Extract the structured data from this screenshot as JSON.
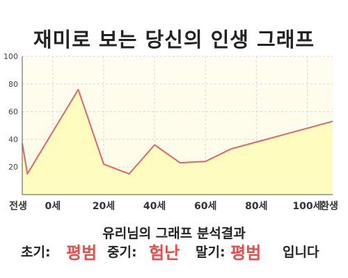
{
  "chart_data": {
    "type": "area",
    "title": "재미로 보는 당신의 인생 그래프",
    "x": [
      -2,
      0,
      20,
      30,
      40,
      50,
      60,
      70,
      80,
      90,
      100,
      120
    ],
    "y": [
      37,
      15,
      76,
      22,
      15,
      36,
      23,
      24,
      33,
      38,
      43,
      53
    ],
    "x_tick_labels": [
      "전생",
      "0세",
      "20세",
      "40세",
      "60세",
      "80세",
      "100세",
      "환생"
    ],
    "y_ticks": [
      20,
      40,
      60,
      80,
      100
    ],
    "ylim": [
      0,
      100
    ],
    "grid": true,
    "colors": {
      "line": "#e06666",
      "fill": "#fffcc0",
      "grid": "#d8d8d8"
    }
  },
  "result": {
    "title": "유리님의 그래프 분석결과",
    "early_label": "초기:",
    "early_value": "평범",
    "mid_label": "중기:",
    "mid_value": "험난",
    "late_label": "말기:",
    "late_value": "평범",
    "suffix": "입니다"
  }
}
